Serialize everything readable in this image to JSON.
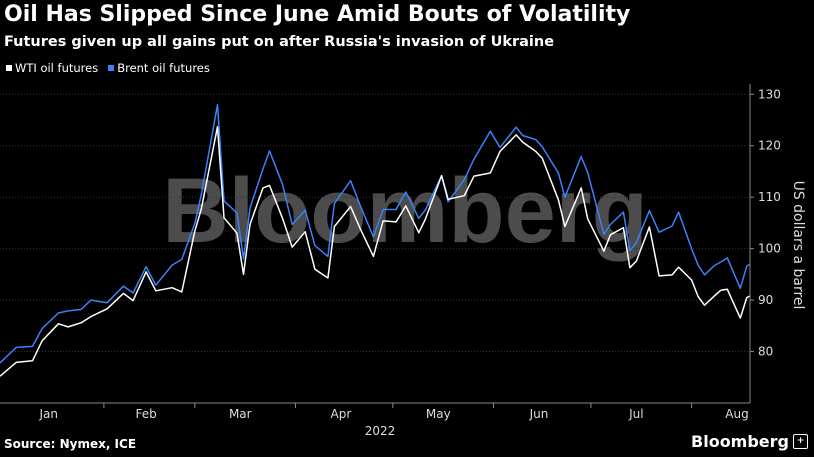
{
  "header": {
    "title": "Oil Has Slipped Since June Amid Bouts of Volatility",
    "subtitle": "Futures given up all gains put on after Russia's invasion of Ukraine"
  },
  "footer": {
    "source": "Source: Nymex, ICE",
    "brand": "Bloomberg",
    "brand_icon": "plus-icon"
  },
  "watermark": "Bloomberg",
  "colors": {
    "wti": "#ffffff",
    "brent": "#3b82f6",
    "grid": "#333333",
    "axis": "#888888"
  },
  "chart_data": {
    "type": "line",
    "title": "Oil Has Slipped Since June Amid Bouts of Volatility",
    "subtitle": "Futures given up all gains put on after Russia's invasion of Ukraine",
    "xlabel": "2022",
    "ylabel": "US dollars a barrel",
    "ylim": [
      70,
      132
    ],
    "yticks": [
      80,
      90,
      100,
      110,
      120,
      130
    ],
    "grid": "horizontal-dotted",
    "legend": "top-left",
    "x_start": "2021-12-31",
    "x_end": "2022-08-19",
    "month_ticks": [
      {
        "label": "Jan",
        "date": "2022-01-15"
      },
      {
        "label": "Feb",
        "date": "2022-02-14"
      },
      {
        "label": "Mar",
        "date": "2022-03-15"
      },
      {
        "label": "Apr",
        "date": "2022-04-15"
      },
      {
        "label": "May",
        "date": "2022-05-15"
      },
      {
        "label": "Jun",
        "date": "2022-06-15"
      },
      {
        "label": "Jul",
        "date": "2022-07-15"
      },
      {
        "label": "Aug",
        "date": "2022-08-15"
      }
    ],
    "series": [
      {
        "name": "WTI oil futures",
        "color": "#ffffff",
        "points": [
          [
            "2021-12-31",
            75.2
          ],
          [
            "2022-01-05",
            77.9
          ],
          [
            "2022-01-10",
            78.2
          ],
          [
            "2022-01-13",
            82.1
          ],
          [
            "2022-01-18",
            85.4
          ],
          [
            "2022-01-21",
            84.8
          ],
          [
            "2022-01-25",
            85.6
          ],
          [
            "2022-01-28",
            86.8
          ],
          [
            "2022-02-02",
            88.3
          ],
          [
            "2022-02-07",
            91.3
          ],
          [
            "2022-02-10",
            89.9
          ],
          [
            "2022-02-14",
            95.5
          ],
          [
            "2022-02-17",
            91.8
          ],
          [
            "2022-02-22",
            92.4
          ],
          [
            "2022-02-25",
            91.6
          ],
          [
            "2022-03-01",
            103.4
          ],
          [
            "2022-03-03",
            107.7
          ],
          [
            "2022-03-08",
            123.7
          ],
          [
            "2022-03-10",
            106.0
          ],
          [
            "2022-03-14",
            103.0
          ],
          [
            "2022-03-16",
            95.0
          ],
          [
            "2022-03-18",
            104.7
          ],
          [
            "2022-03-22",
            111.8
          ],
          [
            "2022-03-24",
            112.3
          ],
          [
            "2022-03-28",
            105.9
          ],
          [
            "2022-03-31",
            100.3
          ],
          [
            "2022-04-04",
            103.3
          ],
          [
            "2022-04-07",
            96.0
          ],
          [
            "2022-04-11",
            94.3
          ],
          [
            "2022-04-13",
            104.3
          ],
          [
            "2022-04-18",
            108.2
          ],
          [
            "2022-04-21",
            103.8
          ],
          [
            "2022-04-25",
            98.5
          ],
          [
            "2022-04-28",
            105.4
          ],
          [
            "2022-05-02",
            105.2
          ],
          [
            "2022-05-05",
            108.3
          ],
          [
            "2022-05-09",
            103.1
          ],
          [
            "2022-05-11",
            105.7
          ],
          [
            "2022-05-16",
            114.2
          ],
          [
            "2022-05-18",
            109.6
          ],
          [
            "2022-05-23",
            110.3
          ],
          [
            "2022-05-26",
            114.1
          ],
          [
            "2022-05-31",
            114.7
          ],
          [
            "2022-06-03",
            118.9
          ],
          [
            "2022-06-08",
            122.1
          ],
          [
            "2022-06-10",
            120.7
          ],
          [
            "2022-06-14",
            118.9
          ],
          [
            "2022-06-16",
            117.6
          ],
          [
            "2022-06-21",
            109.5
          ],
          [
            "2022-06-23",
            104.3
          ],
          [
            "2022-06-28",
            111.8
          ],
          [
            "2022-06-30",
            105.8
          ],
          [
            "2022-07-05",
            99.5
          ],
          [
            "2022-07-07",
            102.7
          ],
          [
            "2022-07-11",
            104.1
          ],
          [
            "2022-07-13",
            96.3
          ],
          [
            "2022-07-15",
            97.6
          ],
          [
            "2022-07-19",
            104.2
          ],
          [
            "2022-07-22",
            94.7
          ],
          [
            "2022-07-26",
            94.9
          ],
          [
            "2022-07-28",
            96.4
          ],
          [
            "2022-08-01",
            93.9
          ],
          [
            "2022-08-03",
            90.7
          ],
          [
            "2022-08-05",
            89.0
          ],
          [
            "2022-08-08",
            90.8
          ],
          [
            "2022-08-10",
            91.9
          ],
          [
            "2022-08-12",
            92.1
          ],
          [
            "2022-08-16",
            86.5
          ],
          [
            "2022-08-18",
            90.5
          ],
          [
            "2022-08-19",
            90.8
          ]
        ]
      },
      {
        "name": "Brent oil futures",
        "color": "#3b82f6",
        "points": [
          [
            "2021-12-31",
            77.8
          ],
          [
            "2022-01-05",
            80.8
          ],
          [
            "2022-01-10",
            81.0
          ],
          [
            "2022-01-13",
            84.5
          ],
          [
            "2022-01-18",
            87.5
          ],
          [
            "2022-01-21",
            87.9
          ],
          [
            "2022-01-25",
            88.2
          ],
          [
            "2022-01-28",
            90.0
          ],
          [
            "2022-02-02",
            89.5
          ],
          [
            "2022-02-07",
            92.7
          ],
          [
            "2022-02-10",
            91.4
          ],
          [
            "2022-02-14",
            96.5
          ],
          [
            "2022-02-17",
            92.9
          ],
          [
            "2022-02-22",
            96.8
          ],
          [
            "2022-02-25",
            97.9
          ],
          [
            "2022-03-01",
            104.9
          ],
          [
            "2022-03-03",
            110.5
          ],
          [
            "2022-03-08",
            127.98
          ],
          [
            "2022-03-10",
            109.3
          ],
          [
            "2022-03-14",
            106.9
          ],
          [
            "2022-03-16",
            98.0
          ],
          [
            "2022-03-18",
            107.9
          ],
          [
            "2022-03-22",
            115.5
          ],
          [
            "2022-03-24",
            119.0
          ],
          [
            "2022-03-28",
            112.5
          ],
          [
            "2022-03-31",
            104.7
          ],
          [
            "2022-04-04",
            107.5
          ],
          [
            "2022-04-07",
            100.6
          ],
          [
            "2022-04-11",
            98.5
          ],
          [
            "2022-04-13",
            108.8
          ],
          [
            "2022-04-18",
            113.2
          ],
          [
            "2022-04-21",
            108.3
          ],
          [
            "2022-04-25",
            102.3
          ],
          [
            "2022-04-28",
            107.6
          ],
          [
            "2022-05-02",
            107.6
          ],
          [
            "2022-05-05",
            111.0
          ],
          [
            "2022-05-09",
            105.9
          ],
          [
            "2022-05-11",
            107.5
          ],
          [
            "2022-05-16",
            114.2
          ],
          [
            "2022-05-18",
            109.1
          ],
          [
            "2022-05-23",
            113.4
          ],
          [
            "2022-05-26",
            117.4
          ],
          [
            "2022-05-31",
            122.8
          ],
          [
            "2022-06-03",
            119.7
          ],
          [
            "2022-06-08",
            123.6
          ],
          [
            "2022-06-10",
            122.0
          ],
          [
            "2022-06-14",
            121.2
          ],
          [
            "2022-06-16",
            119.8
          ],
          [
            "2022-06-21",
            114.7
          ],
          [
            "2022-06-23",
            110.0
          ],
          [
            "2022-06-28",
            117.9
          ],
          [
            "2022-06-30",
            114.8
          ],
          [
            "2022-07-05",
            102.8
          ],
          [
            "2022-07-07",
            104.7
          ],
          [
            "2022-07-11",
            107.1
          ],
          [
            "2022-07-13",
            99.6
          ],
          [
            "2022-07-15",
            101.2
          ],
          [
            "2022-07-19",
            107.4
          ],
          [
            "2022-07-22",
            103.2
          ],
          [
            "2022-07-26",
            104.4
          ],
          [
            "2022-07-28",
            107.1
          ],
          [
            "2022-08-01",
            100.0
          ],
          [
            "2022-08-03",
            96.8
          ],
          [
            "2022-08-05",
            94.9
          ],
          [
            "2022-08-08",
            96.7
          ],
          [
            "2022-08-10",
            97.4
          ],
          [
            "2022-08-12",
            98.2
          ],
          [
            "2022-08-16",
            92.3
          ],
          [
            "2022-08-18",
            96.6
          ],
          [
            "2022-08-19",
            97.0
          ]
        ]
      }
    ]
  }
}
